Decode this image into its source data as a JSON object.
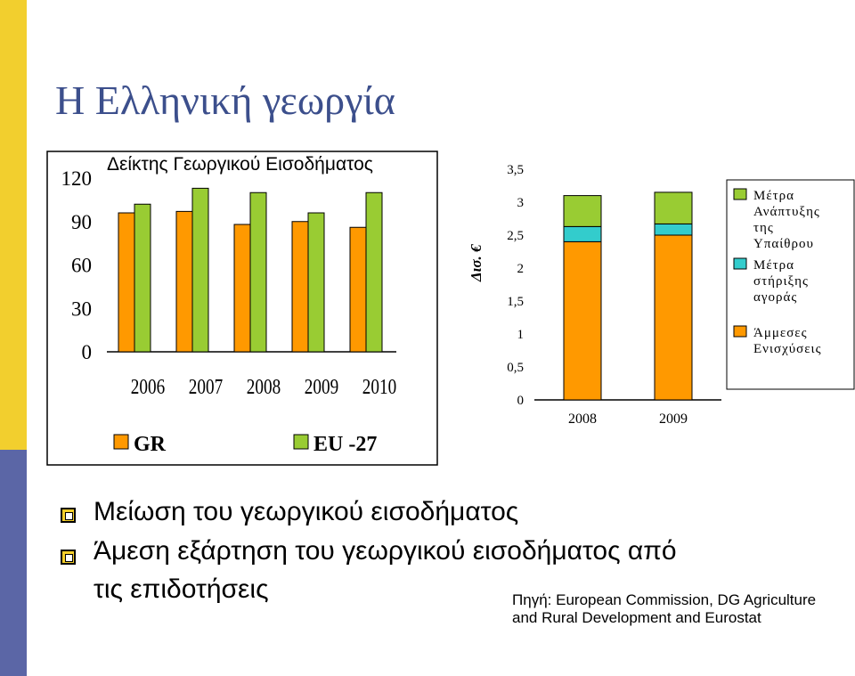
{
  "title": "Η Ελληνική γεωργία",
  "colors": {
    "gr": "#ff9900",
    "eu27": "#99cc33",
    "direct": "#ff9900",
    "market": "#33cccc",
    "rural": "#99cc33",
    "accent_top": "#f2cf2e",
    "accent_bottom": "#5b66a6",
    "title": "#3c4f8c"
  },
  "chart_data": [
    {
      "type": "bar",
      "title": "Δείκτης Γεωργικού Εισοδήματος",
      "categories": [
        "2006",
        "2007",
        "2008",
        "2009",
        "2010"
      ],
      "series": [
        {
          "name": "GR",
          "values": [
            96,
            97,
            88,
            90,
            86
          ]
        },
        {
          "name": "EU -27",
          "values": [
            102,
            113,
            110,
            96,
            110
          ]
        }
      ],
      "yticks": [
        "120",
        "90",
        "60",
        "30",
        "0"
      ],
      "ylim": [
        0,
        120
      ],
      "legend_position": "bottom"
    },
    {
      "type": "bar",
      "stacked": true,
      "ylabel": "Δισ. €",
      "categories": [
        "2008",
        "2009"
      ],
      "series": [
        {
          "name": "Άμμεσες Ενισχύσεις",
          "values": [
            2.4,
            2.5
          ]
        },
        {
          "name": "Μέτρα στήριξης αγοράς",
          "values": [
            0.23,
            0.17
          ]
        },
        {
          "name": "Μέτρα Ανάπτυξης της Υπαίθρου",
          "values": [
            0.47,
            0.48
          ]
        }
      ],
      "yticks": [
        "3,5",
        "3",
        "2,5",
        "2",
        "1,5",
        "1",
        "0,5",
        "0"
      ],
      "ylim": [
        0,
        3.5
      ],
      "legend_position": "right"
    }
  ],
  "bullets": [
    "Μείωση του γεωργικού εισοδήματος",
    "Άμεση εξάρτηση του γεωργικού εισοδήματος από",
    "τις επιδοτήσεις"
  ],
  "source": [
    "Πηγή: European Commission, DG Agriculture",
    "and Rural Development and Eurostat"
  ]
}
